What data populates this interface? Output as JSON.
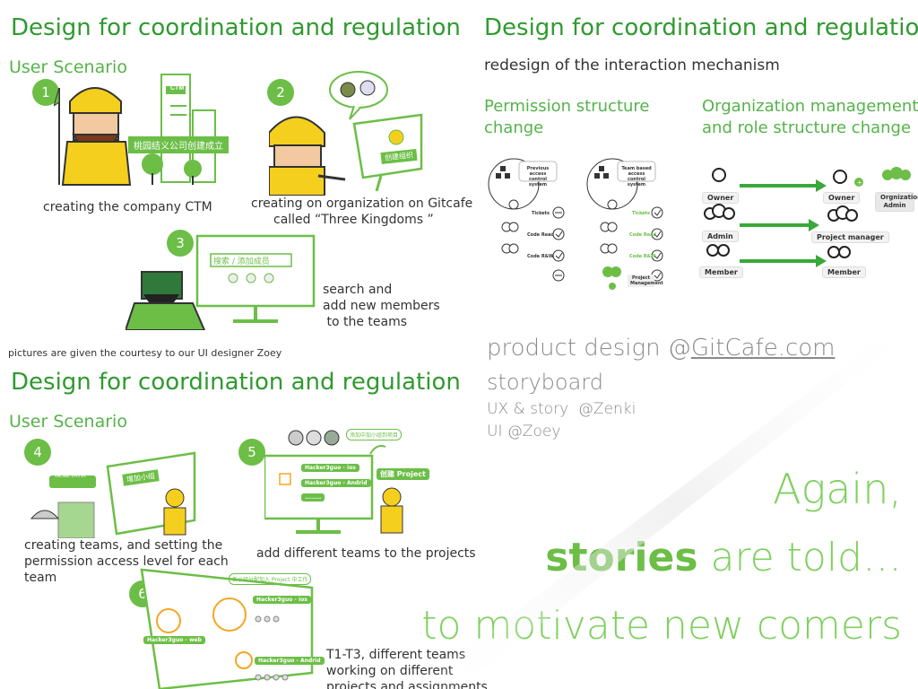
{
  "slide1": {
    "title": "Design for coordination and regulation",
    "section": "User Scenario",
    "steps": [
      {
        "num": "1",
        "caption": "creating the company  CTM",
        "ctm_sign": "CTM",
        "banner": "桃园结义公司创建成立"
      },
      {
        "num": "2",
        "caption_line1": "creating on organization on Gitcafe",
        "caption_line2": "called   “Three Kingdoms ”",
        "screen_text": "创建组织"
      },
      {
        "num": "3",
        "caption_line1": "search and",
        "caption_line2": "add new members",
        "caption_line3": " to the teams",
        "search_text": "搜索 / 添加成员"
      }
    ],
    "credit": "pictures are given the courtesy to our UI designer Zoey"
  },
  "slide2": {
    "title": "Design for coordination and regulation",
    "subtitle": "redesign of the interaction mechanism",
    "left_heading_line1": "Permission structure",
    "left_heading_line2": "change",
    "right_heading_line1": "Organization management",
    "right_heading_line2": "and role structure change",
    "perm_old": {
      "system": "Previous access control system",
      "rows": [
        "Tickets",
        "Code Read",
        "Code R&W"
      ]
    },
    "perm_new": {
      "system": "Team based access control system",
      "rows": [
        "Tickets",
        "Code Read",
        "Code R&W",
        "Project Management"
      ]
    },
    "roles_old": [
      "Owner",
      "Admin",
      "Member"
    ],
    "roles_new": [
      "Owner",
      "Project manager",
      "Member"
    ],
    "roles_extra": "Orgnization Admin"
  },
  "slide3": {
    "title": "Design for coordination and regulation",
    "section": "User Scenario",
    "steps": [
      {
        "num": "4",
        "caption_line1": "creating teams, and setting the",
        "caption_line2": "permission access level for each",
        "caption_line3": "team",
        "bubble": "设置权限",
        "screen_text": "增加小组"
      },
      {
        "num": "5",
        "caption": "add different teams to the projects",
        "team1": "Hacker3guo - ios",
        "team2": "Hacker3guo - Andrid",
        "team3": "........",
        "create_btn": "创建 Project",
        "banner": "添加中加小组到项目"
      },
      {
        "num": "6",
        "caption_line1": "T1-T3, different teams",
        "caption_line2": "working on different",
        "caption_line3": "projects and assignments",
        "banner": "各小组分配加入 Project 中工作",
        "team1": "Hacker3guo - ios",
        "team2": "Hacker3guo - web",
        "team3": "Hacker3guo - Andrid"
      }
    ]
  },
  "slide4": {
    "line1": "product design @",
    "link": "GitCafe.com",
    "line2": "storyboard",
    "line3": "UX & story  @Zenki",
    "line4": "UI @Zoey",
    "big1": "Again,",
    "big2_bold": "stories",
    "big2_rest": " are told…",
    "big3": "to motivate new comers"
  },
  "colors": {
    "green_dark": "#2f9a2f",
    "green_accent": "#6cbe47",
    "yellow": "#f5cf1d",
    "gray": "#8a8a8a"
  }
}
